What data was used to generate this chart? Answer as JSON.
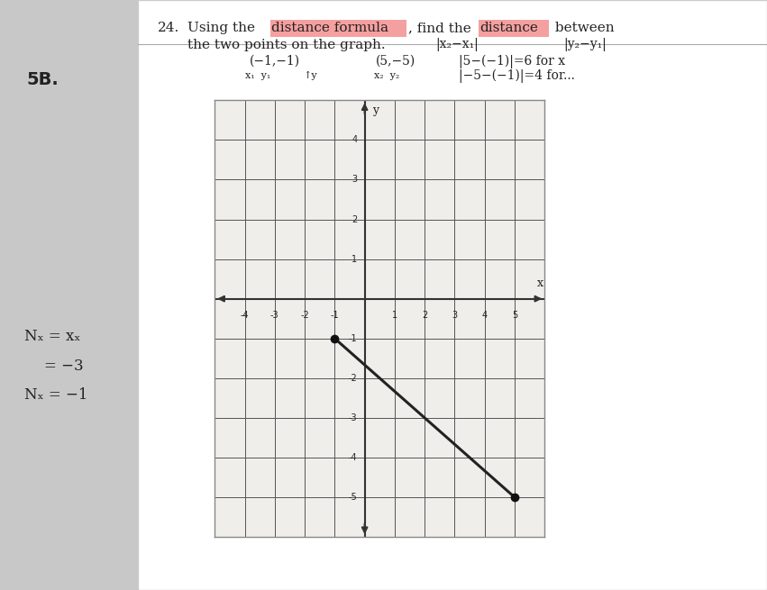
{
  "point1": [
    -1,
    -1
  ],
  "point2": [
    5,
    -5
  ],
  "xlim": [
    -5,
    6
  ],
  "ylim": [
    -6,
    5
  ],
  "xticks": [
    -4,
    -3,
    -2,
    -1,
    0,
    1,
    2,
    3,
    4,
    5
  ],
  "yticks": [
    -5,
    -4,
    -3,
    -2,
    -1,
    0,
    1,
    2,
    3,
    4
  ],
  "grid_color": "#555555",
  "line_color": "#222222",
  "point_color": "#111111",
  "axis_color": "#333333",
  "bg_color": "#f0eeea",
  "paper_color": "#f5f3ef",
  "highlight_pink": "#f5a0a0",
  "text_color": "#222222",
  "fig_width": 8.51,
  "fig_height": 6.55,
  "binder_color": "#c8c8c8",
  "page_color": "#ffffff",
  "line_sep_color": "#aaaaaa"
}
